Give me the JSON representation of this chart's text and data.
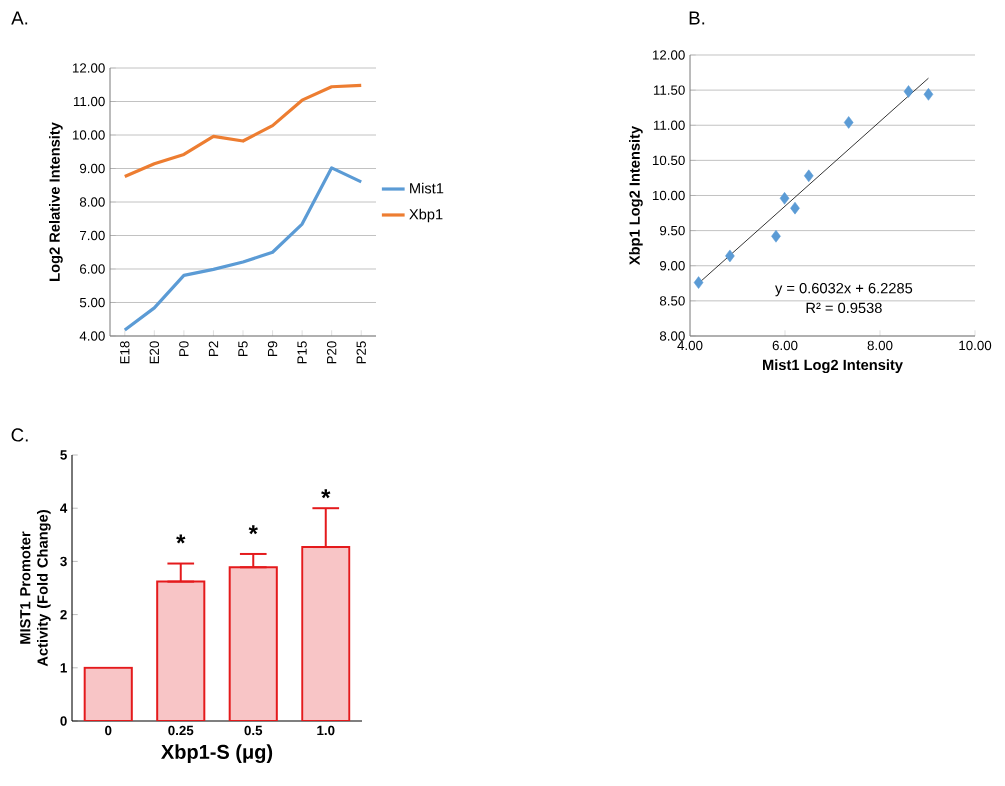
{
  "chart_data": [
    {
      "type": "line",
      "title": "A.",
      "ylabel": "Log2 Relative Intensity",
      "categories": [
        "E18",
        "E20",
        "P0",
        "P2",
        "P5",
        "P9",
        "P15",
        "P20",
        "P25"
      ],
      "series": [
        {
          "name": "Mist1",
          "color": "#5b9bd5",
          "values": [
            4.18,
            4.84,
            5.81,
            5.99,
            6.21,
            6.5,
            7.34,
            9.02,
            8.6
          ]
        },
        {
          "name": "Xbp1",
          "color": "#ed7d31",
          "values": [
            8.76,
            9.14,
            9.42,
            9.96,
            9.82,
            10.28,
            11.04,
            11.44,
            11.48
          ]
        }
      ],
      "ylim": [
        4,
        12
      ],
      "yticks": [
        {
          "value": 4,
          "label": "4.00"
        },
        {
          "value": 5,
          "label": "5.00"
        },
        {
          "value": 6,
          "label": "6.00"
        },
        {
          "value": 7,
          "label": "7.00"
        },
        {
          "value": 8,
          "label": "8.00"
        },
        {
          "value": 9,
          "label": "9.00"
        },
        {
          "value": 10,
          "label": "10.00"
        },
        {
          "value": 11,
          "label": "11.00"
        },
        {
          "value": 12,
          "label": "12.00"
        }
      ],
      "grid": "y",
      "legend": "right",
      "marker": "none"
    },
    {
      "type": "scatter",
      "title": "B.",
      "xlabel": "Mist1 Log2 Intensity",
      "ylabel": "Xbp1 Log2 Intensity",
      "x": [
        4.18,
        4.84,
        5.81,
        5.99,
        6.21,
        6.5,
        7.34,
        9.02,
        8.6
      ],
      "series": [
        {
          "color": "#5b9bd5",
          "marker": "diamond",
          "values": [
            8.76,
            9.14,
            9.42,
            9.96,
            9.82,
            10.28,
            11.04,
            11.44,
            11.48
          ]
        },
        {
          "type": "line",
          "color": "#000000",
          "marker": "none",
          "x": [
            4.18,
            9.02
          ],
          "values": [
            8.75,
            11.67
          ]
        }
      ],
      "xlim": [
        4,
        10
      ],
      "xticks": [
        {
          "value": 4,
          "label": "4.00"
        },
        {
          "value": 6,
          "label": "6.00"
        },
        {
          "value": 8,
          "label": "8.00"
        },
        {
          "value": 10,
          "label": "10.00"
        }
      ],
      "ylim": [
        8,
        12
      ],
      "yticks": [
        {
          "value": 8,
          "label": "8.00"
        },
        {
          "value": 8.5,
          "label": "8.50"
        },
        {
          "value": 9,
          "label": "9.00"
        },
        {
          "value": 9.5,
          "label": "9.50"
        },
        {
          "value": 10,
          "label": "10.00"
        },
        {
          "value": 10.5,
          "label": "10.50"
        },
        {
          "value": 11,
          "label": "11.00"
        },
        {
          "value": 11.5,
          "label": "11.50"
        },
        {
          "value": 12,
          "label": "12.00"
        }
      ],
      "grid": "y",
      "annotations": [
        "y = 0.6032x + 6.2285",
        "R² = 0.9538"
      ]
    },
    {
      "type": "bar",
      "title": "C.",
      "xlabel": "Xbp1-S (μg)",
      "ylabel": "MIST1 Promoter Activity (Fold Change)",
      "categories": [
        "0",
        "0.25",
        "0.5",
        "1.0"
      ],
      "values": [
        1.0,
        2.62,
        2.89,
        3.27
      ],
      "color": "#e41a1c",
      "errors": [
        null,
        [
          2.62,
          2.96
        ],
        [
          2.89,
          3.14
        ],
        [
          3.27,
          4.0
        ]
      ],
      "ylim": [
        0,
        5
      ],
      "yticks": [
        0,
        1,
        2,
        3,
        4,
        5
      ],
      "annotations": [
        "*",
        "*",
        "*"
      ]
    }
  ]
}
